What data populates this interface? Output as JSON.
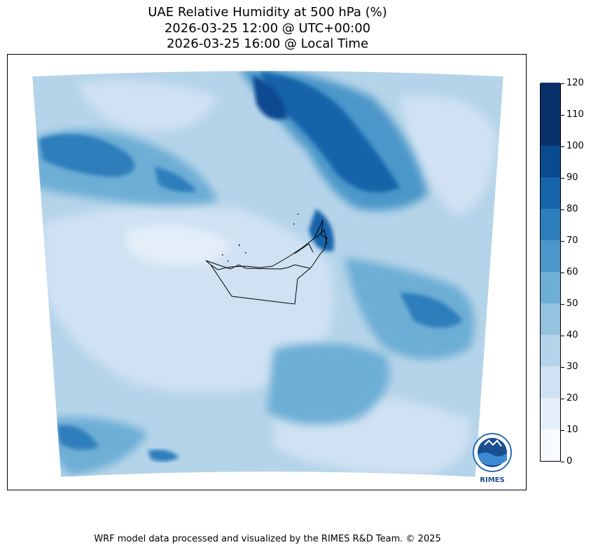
{
  "title": {
    "line1": "UAE Relative Humidity at 500 hPa (%)",
    "line2": "2026-03-25 12:00 @ UTC+00:00",
    "line3": "2026-03-25 16:00 @ Local Time"
  },
  "colorbar": {
    "ticks": [
      "0",
      "10",
      "20",
      "30",
      "40",
      "50",
      "60",
      "70",
      "80",
      "90",
      "100",
      "110",
      "120"
    ],
    "colors": [
      "#f7fbff",
      "#e3eef9",
      "#cfe1f2",
      "#b5d4e9",
      "#93c3df",
      "#6daed5",
      "#4b97c9",
      "#2f7ebc",
      "#1864aa",
      "#0a4a90",
      "#08306b",
      "#08306b"
    ]
  },
  "logo": {
    "text": "RIMES",
    "ring_text": "Regional Integrated Multi-Hazard Early Warning System"
  },
  "footer": "WRF model data processed and visualized by the RIMES R&D Team. © 2025"
}
